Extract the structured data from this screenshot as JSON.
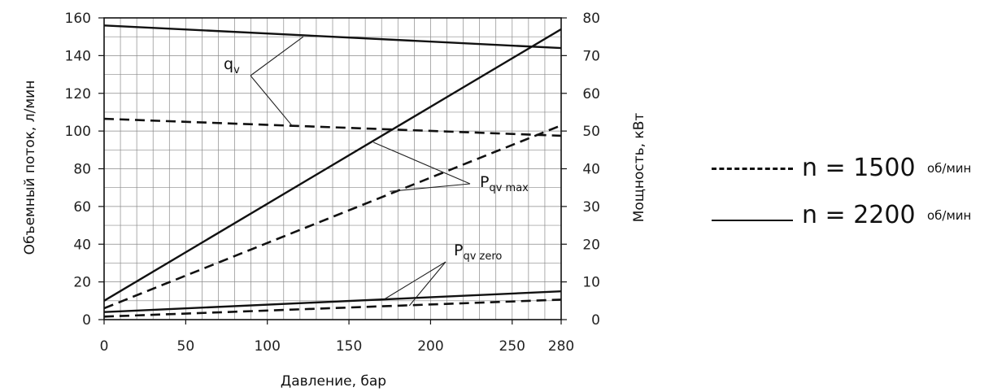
{
  "chart_data": {
    "type": "line",
    "x_axis": {
      "label": "Давление, бар",
      "range": [
        0,
        280
      ],
      "ticks": [
        0,
        50,
        100,
        150,
        200,
        250,
        280
      ]
    },
    "y_left_axis": {
      "label": "Объемный поток, л/мин",
      "range": [
        0,
        160
      ],
      "ticks": [
        0,
        20,
        40,
        60,
        80,
        100,
        120,
        140,
        160
      ]
    },
    "y_right_axis": {
      "label": "Мощность, кВт",
      "range": [
        0,
        80
      ],
      "ticks": [
        0,
        10,
        20,
        30,
        40,
        50,
        60,
        70,
        80
      ]
    },
    "grid": true,
    "series": [
      {
        "group": "q_v",
        "axis": "left",
        "style": "solid",
        "x": [
          0,
          280
        ],
        "y": [
          156,
          144
        ]
      },
      {
        "group": "q_v",
        "axis": "left",
        "style": "dashed",
        "x": [
          0,
          280
        ],
        "y": [
          106.5,
          97.5
        ]
      },
      {
        "group": "P_qv_max",
        "axis": "right",
        "style": "solid",
        "x": [
          0,
          280
        ],
        "y": [
          5,
          77
        ]
      },
      {
        "group": "P_qv_max",
        "axis": "right",
        "style": "dashed",
        "x": [
          0,
          280
        ],
        "y": [
          3,
          51.5
        ]
      },
      {
        "group": "P_qv_zero",
        "axis": "right",
        "style": "solid",
        "x": [
          0,
          280
        ],
        "y": [
          2,
          7.5
        ]
      },
      {
        "group": "P_qv_zero",
        "axis": "right",
        "style": "dashed",
        "x": [
          0,
          280
        ],
        "y": [
          0.8,
          5.3
        ]
      }
    ],
    "annotations": [
      {
        "id": "qv",
        "main": "q",
        "sub": "v",
        "targets": [
          {
            "x": 122,
            "y": 150,
            "axis": "left"
          },
          {
            "x": 115,
            "y": 103,
            "axis": "left"
          }
        ]
      },
      {
        "id": "pqvmax",
        "main": "P",
        "sub": "qv max",
        "targets": [
          {
            "x": 165,
            "y": 47,
            "axis": "right"
          },
          {
            "x": 175,
            "y": 34,
            "axis": "right"
          }
        ]
      },
      {
        "id": "pqvzero",
        "main": "P",
        "sub": "qv zero",
        "targets": [
          {
            "x": 172,
            "y": 5.5,
            "axis": "right"
          },
          {
            "x": 187,
            "y": 3.7,
            "axis": "right"
          }
        ]
      }
    ],
    "legend": [
      {
        "style": "dashed",
        "label": "n = 1500",
        "unit": "об/мин"
      },
      {
        "style": "solid",
        "label": "n = 2200",
        "unit": "об/мин"
      }
    ],
    "legend_position": "right"
  }
}
